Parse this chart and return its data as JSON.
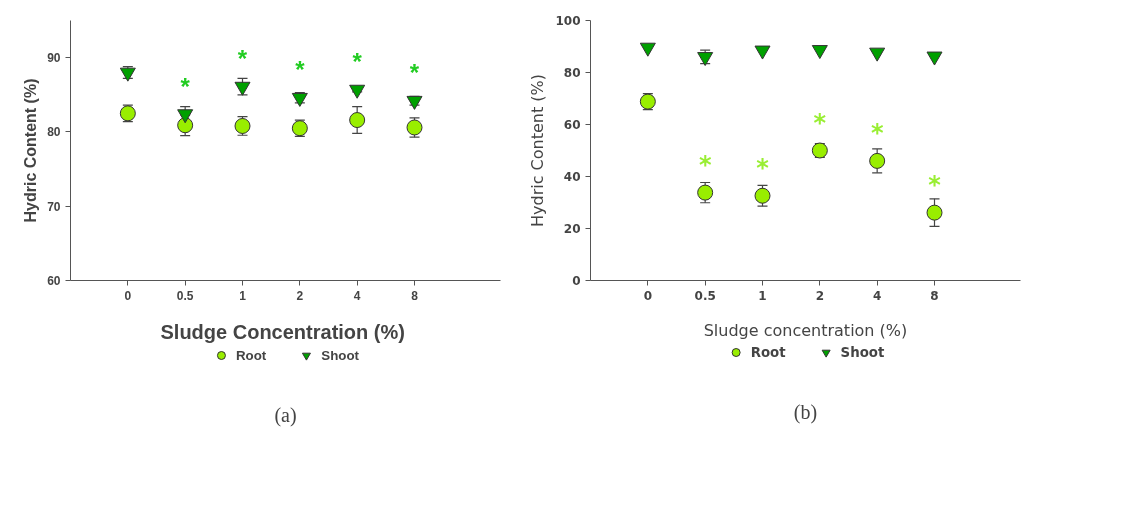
{
  "chart_data": [
    {
      "type": "scatter",
      "xlabel": "Sludge  Concentration (%)",
      "ylabel": "Hydric Content (%)",
      "categories": [
        "0",
        "0.5",
        "1",
        "2",
        "4",
        "8"
      ],
      "ylim": [
        60,
        95
      ],
      "yticks": [
        60,
        70,
        80,
        90
      ],
      "grid": false,
      "legend": "bottom",
      "series": [
        {
          "name": "Root",
          "color": "#99ee00",
          "marker": "circle",
          "values": [
            82.5,
            80.9,
            80.8,
            80.5,
            81.6,
            80.6
          ],
          "errors": [
            1.1,
            1.4,
            1.25,
            1.1,
            1.8,
            1.3
          ]
        },
        {
          "name": "Shoot",
          "color": "#00a000",
          "marker": "triangle",
          "values": [
            88.0,
            82.4,
            86.1,
            84.6,
            85.7,
            84.2
          ],
          "errors": [
            0.8,
            1.0,
            1.1,
            0.7,
            0.3,
            0.6
          ]
        }
      ],
      "annotations": [
        {
          "text": "*",
          "x": "0.5",
          "y": 82.4
        },
        {
          "text": "*",
          "x": "1",
          "y": 86.1
        },
        {
          "text": "*",
          "x": "2",
          "y": 84.6
        },
        {
          "text": "*",
          "x": "4",
          "y": 85.7
        },
        {
          "text": "*",
          "x": "8",
          "y": 84.2
        },
        "(a)"
      ]
    },
    {
      "type": "scatter",
      "xlabel": "Sludge concentration (%)",
      "ylabel": "Hydric Content (%)",
      "categories": [
        "0",
        "0.5",
        "1",
        "2",
        "4",
        "8"
      ],
      "ylim": [
        0,
        100
      ],
      "yticks": [
        0,
        20,
        40,
        60,
        80,
        100
      ],
      "grid": false,
      "legend": "bottom",
      "series": [
        {
          "name": "Root",
          "color": "#99ee00",
          "marker": "circle",
          "values": [
            68.8,
            33.8,
            32.6,
            50.0,
            46.0,
            26.1
          ],
          "errors": [
            3.1,
            3.9,
            4.0,
            2.7,
            4.6,
            5.3
          ]
        },
        {
          "name": "Shoot",
          "color": "#00a000",
          "marker": "triangle",
          "values": [
            89.6,
            86.0,
            88.5,
            88.7,
            87.7,
            86.2
          ],
          "errors": [
            null,
            2.6,
            null,
            null,
            null,
            null
          ]
        }
      ],
      "annotations": [
        {
          "text": "*",
          "x": "0.5",
          "y": 33.8
        },
        {
          "text": "*",
          "x": "1",
          "y": 32.6
        },
        {
          "text": "*",
          "x": "2",
          "y": 50.0
        },
        {
          "text": "*",
          "x": "4",
          "y": 46.0
        },
        {
          "text": "*",
          "x": "8",
          "y": 26.1
        },
        "(b)"
      ]
    }
  ]
}
